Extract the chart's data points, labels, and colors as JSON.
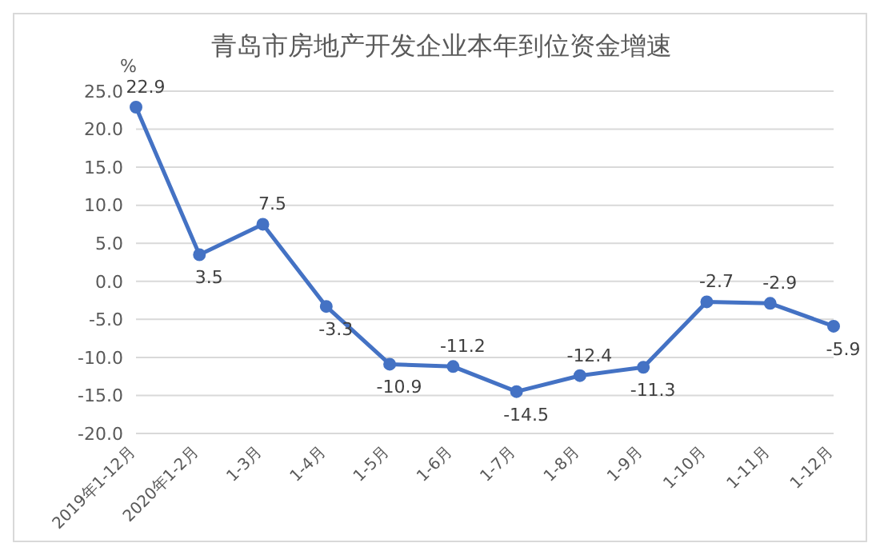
{
  "chart_data": {
    "type": "line",
    "title": "青岛市房地产开发企业本年到位资金增速",
    "ylabel": "%",
    "categories": [
      "2019年1-12月",
      "2020年1-2月",
      "1-3月",
      "1-4月",
      "1-5月",
      "1-6月",
      "1-7月",
      "1-8月",
      "1-9月",
      "1-10月",
      "1-11月",
      "1-12月"
    ],
    "series": [
      {
        "color": "#4472c4",
        "values": [
          22.9,
          3.5,
          7.5,
          -3.3,
          -10.9,
          -11.2,
          -14.5,
          -12.4,
          -11.3,
          -2.7,
          -2.9,
          -5.9
        ]
      }
    ],
    "ylim": [
      -20,
      25
    ],
    "yticks": [
      {
        "value": -20,
        "label": "-20.0"
      },
      {
        "value": -15,
        "label": "-15.0"
      },
      {
        "value": -10,
        "label": "-10.0"
      },
      {
        "value": -5,
        "label": "-5.0"
      },
      {
        "value": 0,
        "label": "0.0"
      },
      {
        "value": 5,
        "label": "5.0"
      },
      {
        "value": 10,
        "label": "10.0"
      },
      {
        "value": 15,
        "label": "15.0"
      },
      {
        "value": 20,
        "label": "20.0"
      },
      {
        "value": 25,
        "label": "25.0"
      }
    ],
    "grid": "y",
    "marker": "circle",
    "line_style": "solid",
    "data_labels": true,
    "legend": false
  }
}
